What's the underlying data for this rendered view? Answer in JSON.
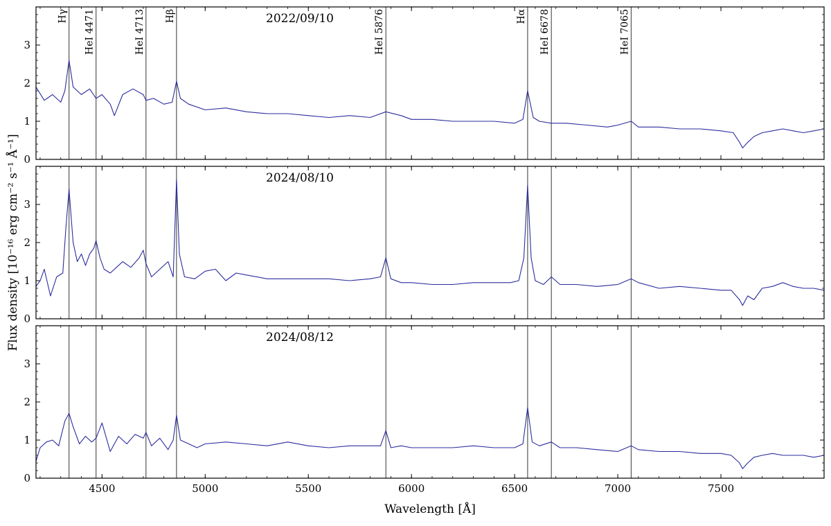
{
  "chart_data": {
    "type": "line",
    "xlabel": "Wavelength [Å]",
    "ylabel": "Flux density [10⁻¹⁶ erg cm⁻² s⁻¹ Å⁻¹]",
    "xlim": [
      4180,
      8000
    ],
    "ylim": [
      0,
      4
    ],
    "xticks": [
      4500,
      5000,
      5500,
      6000,
      6500,
      7000,
      7500
    ],
    "yticks": [
      0,
      1,
      2,
      3
    ],
    "series_color": "#2b2b9e",
    "line_color": "#555555",
    "lines": [
      {
        "label": "Hγ",
        "wavelength": 4340
      },
      {
        "label": "HeI 4471",
        "wavelength": 4471
      },
      {
        "label": "HeI 4713",
        "wavelength": 4713
      },
      {
        "label": "Hβ",
        "wavelength": 4861
      },
      {
        "label": "HeI 5876",
        "wavelength": 5876
      },
      {
        "label": "Hα",
        "wavelength": 6563
      },
      {
        "label": "HeI 6678",
        "wavelength": 6678
      },
      {
        "label": "HeI 7065",
        "wavelength": 7065
      }
    ],
    "panels": [
      {
        "title": "2022/09/10",
        "series": [
          {
            "x": [
              4180,
              4220,
              4260,
              4300,
              4320,
              4340,
              4360,
              4400,
              4440,
              4471,
              4500,
              4540,
              4560,
              4600,
              4650,
              4700,
              4713,
              4750,
              4800,
              4840,
              4861,
              4880,
              4920,
              5000,
              5100,
              5200,
              5300,
              5400,
              5500,
              5600,
              5700,
              5800,
              5876,
              5950,
              6000,
              6100,
              6200,
              6300,
              6400,
              6500,
              6540,
              6563,
              6590,
              6620,
              6678,
              6750,
              6850,
              6950,
              7000,
              7065,
              7100,
              7200,
              7300,
              7400,
              7500,
              7560,
              7590,
              7605,
              7630,
              7660,
              7700,
              7750,
              7800,
              7850,
              7900,
              7950,
              8000
            ],
            "y": [
              1.9,
              1.55,
              1.7,
              1.5,
              1.8,
              2.6,
              1.9,
              1.7,
              1.85,
              1.6,
              1.7,
              1.45,
              1.15,
              1.7,
              1.85,
              1.7,
              1.55,
              1.6,
              1.45,
              1.5,
              2.05,
              1.6,
              1.45,
              1.3,
              1.35,
              1.25,
              1.2,
              1.2,
              1.15,
              1.1,
              1.15,
              1.1,
              1.25,
              1.15,
              1.05,
              1.05,
              1.0,
              1.0,
              1.0,
              0.95,
              1.05,
              1.8,
              1.1,
              1.0,
              0.95,
              0.95,
              0.9,
              0.85,
              0.9,
              1.0,
              0.85,
              0.85,
              0.8,
              0.8,
              0.75,
              0.7,
              0.45,
              0.3,
              0.45,
              0.6,
              0.7,
              0.75,
              0.8,
              0.75,
              0.7,
              0.75,
              0.8
            ]
          }
        ]
      },
      {
        "title": "2024/08/10",
        "series": [
          {
            "x": [
              4180,
              4200,
              4220,
              4250,
              4280,
              4310,
              4325,
              4340,
              4360,
              4380,
              4400,
              4420,
              4440,
              4460,
              4471,
              4490,
              4510,
              4540,
              4570,
              4600,
              4640,
              4680,
              4700,
              4713,
              4740,
              4780,
              4820,
              4845,
              4861,
              4875,
              4900,
              4950,
              5000,
              5050,
              5100,
              5150,
              5200,
              5300,
              5400,
              5500,
              5600,
              5700,
              5800,
              5850,
              5876,
              5900,
              5950,
              6000,
              6100,
              6200,
              6300,
              6400,
              6480,
              6520,
              6545,
              6563,
              6580,
              6600,
              6640,
              6678,
              6720,
              6800,
              6900,
              7000,
              7065,
              7100,
              7200,
              7300,
              7400,
              7500,
              7550,
              7590,
              7605,
              7630,
              7660,
              7700,
              7750,
              7800,
              7850,
              7900,
              7950,
              8000
            ],
            "y": [
              0.85,
              1.0,
              1.3,
              0.6,
              1.1,
              1.2,
              2.4,
              3.4,
              2.0,
              1.5,
              1.7,
              1.4,
              1.7,
              1.85,
              2.05,
              1.6,
              1.3,
              1.2,
              1.35,
              1.5,
              1.35,
              1.6,
              1.8,
              1.45,
              1.1,
              1.3,
              1.5,
              1.1,
              3.65,
              1.7,
              1.1,
              1.05,
              1.25,
              1.3,
              1.0,
              1.2,
              1.15,
              1.05,
              1.05,
              1.05,
              1.05,
              1.0,
              1.05,
              1.1,
              1.6,
              1.05,
              0.95,
              0.95,
              0.9,
              0.9,
              0.95,
              0.95,
              0.95,
              1.0,
              1.6,
              3.5,
              1.6,
              1.0,
              0.9,
              1.1,
              0.9,
              0.9,
              0.85,
              0.9,
              1.05,
              0.95,
              0.8,
              0.85,
              0.8,
              0.75,
              0.75,
              0.5,
              0.35,
              0.6,
              0.5,
              0.8,
              0.85,
              0.95,
              0.85,
              0.8,
              0.8,
              0.75
            ]
          }
        ]
      },
      {
        "title": "2024/08/12",
        "series": [
          {
            "x": [
              4180,
              4200,
              4230,
              4260,
              4290,
              4320,
              4340,
              4360,
              4390,
              4420,
              4450,
              4471,
              4500,
              4540,
              4580,
              4620,
              4660,
              4700,
              4713,
              4740,
              4780,
              4820,
              4845,
              4861,
              4880,
              4920,
              4960,
              5000,
              5100,
              5200,
              5300,
              5400,
              5500,
              5600,
              5700,
              5800,
              5850,
              5876,
              5900,
              5950,
              6000,
              6100,
              6200,
              6300,
              6400,
              6500,
              6540,
              6563,
              6585,
              6620,
              6678,
              6720,
              6800,
              6900,
              7000,
              7065,
              7100,
              7200,
              7300,
              7400,
              7500,
              7550,
              7590,
              7605,
              7630,
              7660,
              7700,
              7750,
              7800,
              7850,
              7900,
              7950,
              8000
            ],
            "y": [
              0.45,
              0.8,
              0.95,
              1.0,
              0.85,
              1.5,
              1.7,
              1.35,
              0.9,
              1.1,
              0.95,
              1.05,
              1.45,
              0.7,
              1.1,
              0.9,
              1.15,
              1.05,
              1.2,
              0.85,
              1.05,
              0.75,
              1.0,
              1.65,
              1.0,
              0.9,
              0.8,
              0.9,
              0.95,
              0.9,
              0.85,
              0.95,
              0.85,
              0.8,
              0.85,
              0.85,
              0.85,
              1.25,
              0.8,
              0.85,
              0.8,
              0.8,
              0.8,
              0.85,
              0.8,
              0.8,
              0.9,
              1.85,
              0.95,
              0.85,
              0.95,
              0.8,
              0.8,
              0.75,
              0.7,
              0.85,
              0.75,
              0.7,
              0.7,
              0.65,
              0.65,
              0.6,
              0.4,
              0.25,
              0.4,
              0.55,
              0.6,
              0.65,
              0.6,
              0.6,
              0.6,
              0.55,
              0.6
            ]
          }
        ]
      }
    ]
  }
}
